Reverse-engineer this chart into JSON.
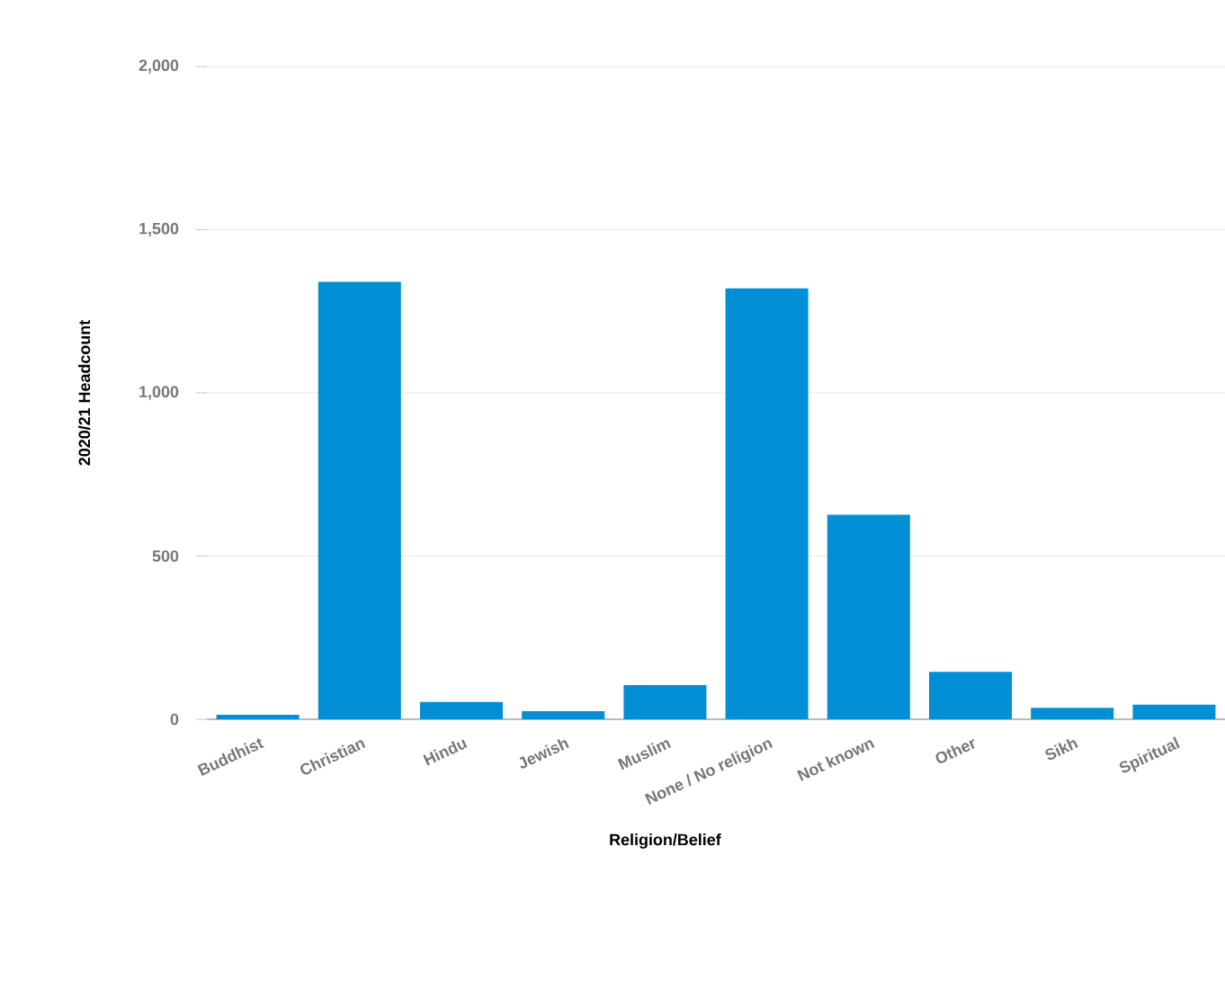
{
  "chart_data": {
    "type": "bar",
    "xlabel": "Religion/Belief",
    "ylabel": "2020/21 Headcount",
    "categories": [
      "Buddhist",
      "Christian",
      "Hindu",
      "Jewish",
      "Muslim",
      "None / No religion",
      "Not known",
      "Other",
      "Sikh",
      "Spiritual"
    ],
    "values": [
      14,
      1340,
      53,
      25,
      105,
      1320,
      627,
      145,
      35,
      45
    ],
    "color": "#008fd5",
    "ylim": [
      0,
      2000
    ],
    "yticks": [
      {
        "value": 0,
        "label": "0"
      },
      {
        "value": 500,
        "label": "500"
      },
      {
        "value": 1000,
        "label": "1,000"
      },
      {
        "value": 1500,
        "label": "1,500"
      },
      {
        "value": 2000,
        "label": "2,000"
      }
    ],
    "grid": "y"
  }
}
